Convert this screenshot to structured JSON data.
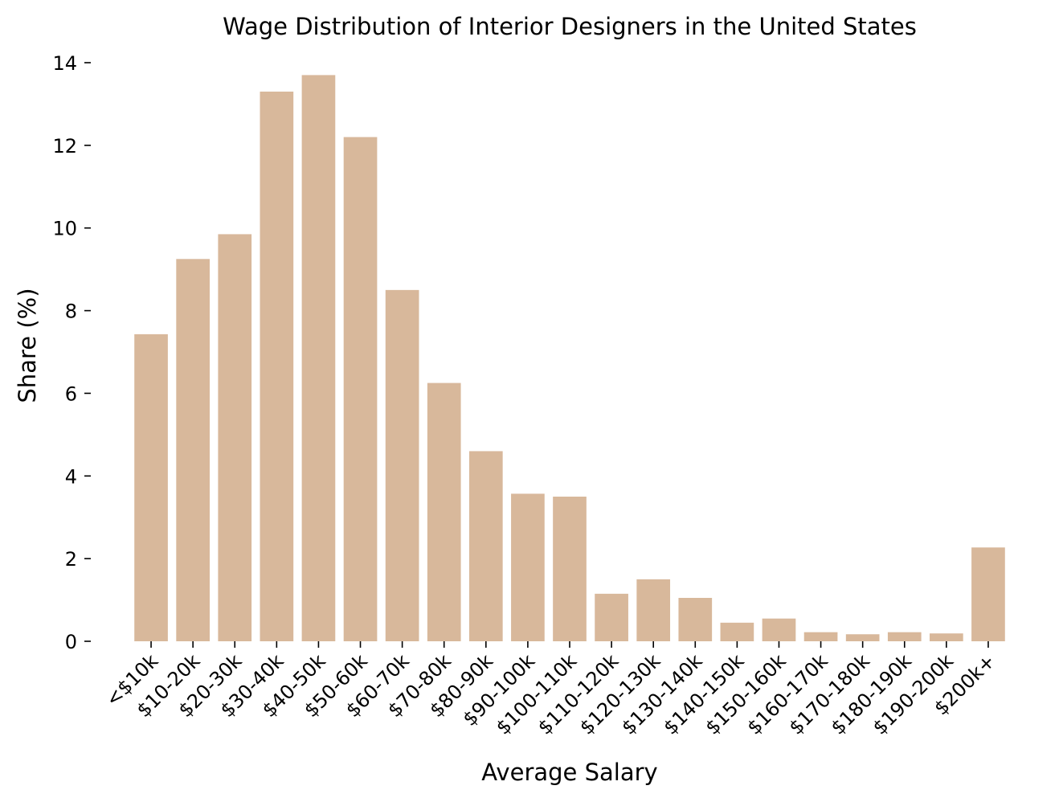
{
  "chart_data": {
    "type": "bar",
    "title": "Wage Distribution of Interior Designers in the United States",
    "xlabel": "Average Salary",
    "ylabel": "Share (%)",
    "categories": [
      "<$10k",
      "$10-20k",
      "$20-30k",
      "$30-40k",
      "$40-50k",
      "$50-60k",
      "$60-70k",
      "$70-80k",
      "$80-90k",
      "$90-100k",
      "$100-110k",
      "$110-120k",
      "$120-130k",
      "$130-140k",
      "$140-150k",
      "$150-160k",
      "$160-170k",
      "$170-180k",
      "$180-190k",
      "$190-200k",
      "$200k+"
    ],
    "values": [
      7.43,
      9.25,
      9.85,
      13.3,
      13.7,
      12.2,
      8.5,
      6.25,
      4.6,
      3.57,
      3.5,
      1.15,
      1.5,
      1.05,
      0.45,
      0.55,
      0.22,
      0.17,
      0.22,
      0.19,
      2.27
    ],
    "ylim": [
      0,
      14
    ],
    "yticks": [
      0,
      2,
      4,
      6,
      8,
      10,
      12,
      14
    ],
    "grid": false,
    "bar_color": "#d8b89b",
    "spines": "none"
  }
}
